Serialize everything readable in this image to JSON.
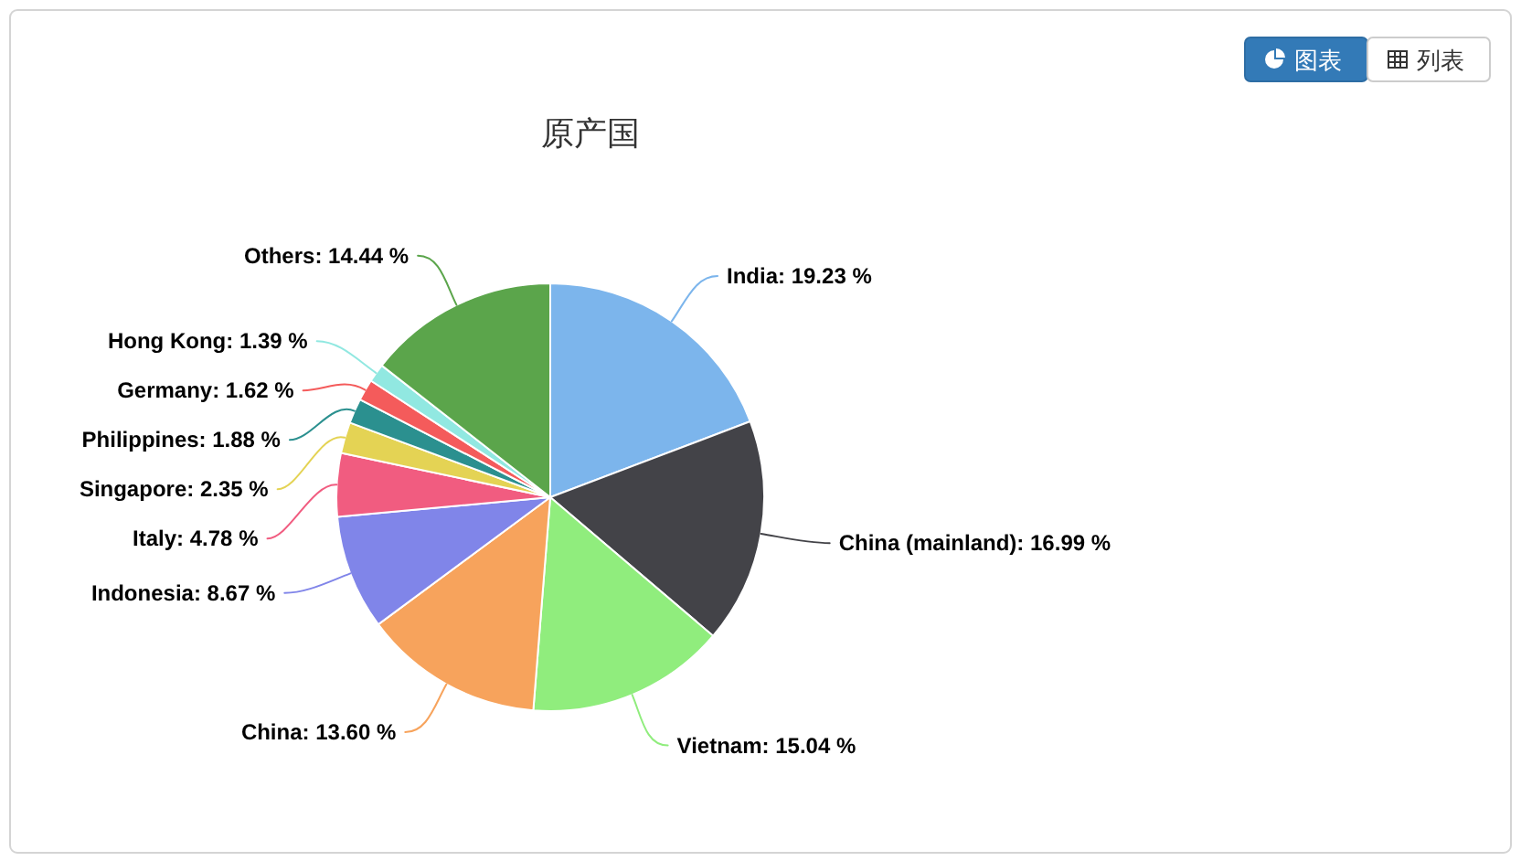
{
  "chart_data": {
    "type": "pie",
    "title": "原产国",
    "categories": [
      "India",
      "China (mainland)",
      "Vietnam",
      "China",
      "Indonesia",
      "Italy",
      "Singapore",
      "Philippines",
      "Germany",
      "Hong Kong",
      "Others"
    ],
    "values": [
      19.23,
      16.99,
      15.04,
      13.6,
      8.67,
      4.78,
      2.35,
      1.88,
      1.62,
      1.39,
      14.44
    ],
    "value_labels": [
      "19.23 %",
      "16.99 %",
      "15.04 %",
      "13.60 %",
      "8.67 %",
      "4.78 %",
      "2.35 %",
      "1.88 %",
      "1.62 %",
      "1.39 %",
      "14.44 %"
    ],
    "colors": [
      "#7cb5ec",
      "#434348",
      "#90ed7d",
      "#f7a35c",
      "#8085e9",
      "#f15c80",
      "#e4d354",
      "#2b908f",
      "#f45b5b",
      "#91e8e1",
      "#5ba54b"
    ],
    "annotations": [
      "图表",
      "列表"
    ]
  }
}
